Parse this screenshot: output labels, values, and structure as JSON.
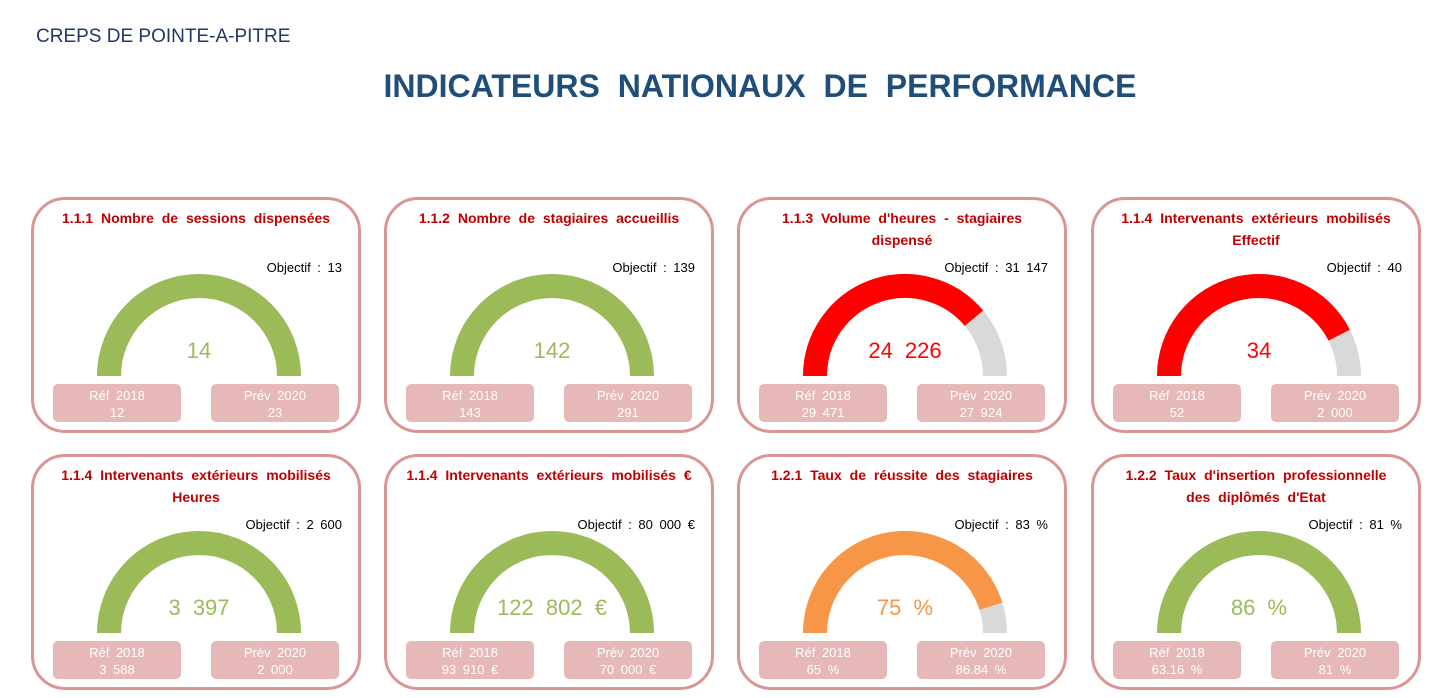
{
  "header": {
    "organization": "CREPS DE POINTE-A-PITRE",
    "title": "INDICATEURS NATIONAUX DE PERFORMANCE"
  },
  "colors": {
    "green": "#9bbb59",
    "red": "#ff0000",
    "orange": "#f79646",
    "track": "#d9d9d9",
    "border": "#d99694",
    "pill": "#e6b8b7",
    "title_red": "#c00000"
  },
  "chart_data": [
    {
      "type": "gauge",
      "title": "1.1.1 Nombre de sessions dispensées",
      "objective_label": "Objectif : 13",
      "value_label": "14",
      "fill_fraction": 1.0,
      "color": "#9bbb59",
      "ref_label": "Réf 2018",
      "ref_value": "12",
      "prev_label": "Prév 2020",
      "prev_value": "23"
    },
    {
      "type": "gauge",
      "title": "1.1.2 Nombre de stagiaires accueillis",
      "objective_label": "Objectif : 139",
      "value_label": "142",
      "fill_fraction": 1.0,
      "color": "#9bbb59",
      "ref_label": "Réf 2018",
      "ref_value": "143",
      "prev_label": "Prév 2020",
      "prev_value": "291"
    },
    {
      "type": "gauge",
      "title": "1.1.3 Volume d'heures - stagiaires dispensé",
      "objective_label": "Objectif : 31 147",
      "value_label": "24 226",
      "fill_fraction": 0.7778,
      "color": "#ff0000",
      "ref_label": "Réf 2018",
      "ref_value": "29 471",
      "prev_label": "Prév 2020",
      "prev_value": "27 924"
    },
    {
      "type": "gauge",
      "title": "1.1.4 Intervenants extérieurs mobilisés Effectif",
      "objective_label": "Objectif : 40",
      "value_label": "34",
      "fill_fraction": 0.85,
      "color": "#ff0000",
      "ref_label": "Réf 2018",
      "ref_value": "52",
      "prev_label": "Prév 2020",
      "prev_value": "2 000"
    },
    {
      "type": "gauge",
      "title": "1.1.4 Intervenants extérieurs mobilisés Heures",
      "objective_label": "Objectif : 2 600",
      "value_label": "3 397",
      "fill_fraction": 1.0,
      "color": "#9bbb59",
      "ref_label": "Réf 2018",
      "ref_value": "3 588",
      "prev_label": "Prév 2020",
      "prev_value": "2 000"
    },
    {
      "type": "gauge",
      "title": "1.1.4 Intervenants extérieurs mobilisés €",
      "objective_label": "Objectif : 80 000 €",
      "value_label": "122 802 €",
      "fill_fraction": 1.0,
      "color": "#9bbb59",
      "ref_label": "Réf 2018",
      "ref_value": "93 910 €",
      "prev_label": "Prév 2020",
      "prev_value": "70 000 €"
    },
    {
      "type": "gauge",
      "title": "1.2.1 Taux de réussite des stagiaires",
      "objective_label": "Objectif : 83 %",
      "value_label": "75 %",
      "fill_fraction": 0.9036,
      "color": "#f79646",
      "ref_label": "Réf 2018",
      "ref_value": "65 %",
      "prev_label": "Prév 2020",
      "prev_value": "86.84 %"
    },
    {
      "type": "gauge",
      "title": "1.2.2 Taux d'insertion professionnelle des diplômés d'Etat",
      "objective_label": "Objectif : 81 %",
      "value_label": "86 %",
      "fill_fraction": 1.0,
      "color": "#9bbb59",
      "ref_label": "Réf 2018",
      "ref_value": "63.16 %",
      "prev_label": "Prév 2020",
      "prev_value": "81 %"
    }
  ]
}
